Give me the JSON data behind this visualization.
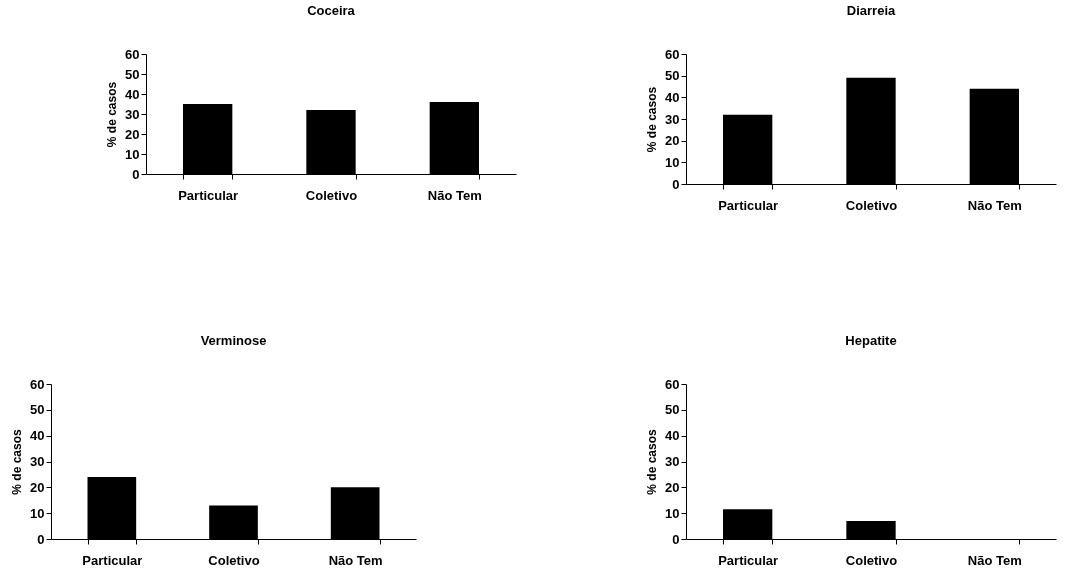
{
  "chart_data": [
    {
      "type": "bar",
      "title": "Coceira",
      "ylabel": "% de casos",
      "categories": [
        "Particular",
        "Coletivo",
        "Não Tem"
      ],
      "values": [
        35,
        32,
        36
      ],
      "color": "#000000",
      "ylim": [
        0,
        60
      ],
      "yticks": [
        0,
        10,
        20,
        30,
        40,
        50,
        60
      ],
      "grid": false,
      "legend": false
    },
    {
      "type": "bar",
      "title": "Diarreia",
      "ylabel": "% de casos",
      "categories": [
        "Particular",
        "Coletivo",
        "Não Tem"
      ],
      "values": [
        32,
        49,
        44
      ],
      "color": "#000000",
      "ylim": [
        0,
        60
      ],
      "yticks": [
        0,
        10,
        20,
        30,
        40,
        50,
        60
      ],
      "grid": false,
      "legend": false
    },
    {
      "type": "bar",
      "title": "Verminose",
      "ylabel": "% de casos",
      "categories": [
        "Particular",
        "Coletivo",
        "Não Tem"
      ],
      "values": [
        24,
        13,
        20
      ],
      "color": "#000000",
      "ylim": [
        0,
        60
      ],
      "yticks": [
        0,
        10,
        20,
        30,
        40,
        50,
        60
      ],
      "grid": false,
      "legend": false
    },
    {
      "type": "bar",
      "title": "Hepatite",
      "ylabel": "% de casos",
      "categories": [
        "Particular",
        "Coletivo",
        "Não Tem"
      ],
      "values": [
        11.5,
        7,
        0
      ],
      "color": "#000000",
      "ylim": [
        0,
        60
      ],
      "yticks": [
        0,
        10,
        20,
        30,
        40,
        50,
        60
      ],
      "grid": false,
      "legend": false
    }
  ]
}
